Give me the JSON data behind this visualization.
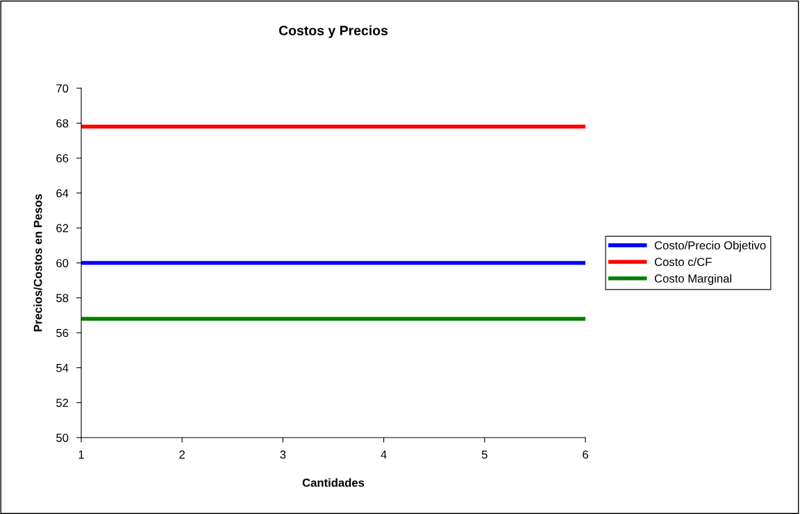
{
  "chart_data": {
    "type": "line",
    "title": "Costos y Precios",
    "xlabel": "Cantidades",
    "ylabel": "Precios/Costos en Pesos",
    "categories": [
      "1",
      "2",
      "3",
      "4",
      "5",
      "6"
    ],
    "series": [
      {
        "name": "Costo/Precio Objetivo",
        "color": "#0000ff",
        "values": [
          60,
          60,
          60,
          60,
          60,
          60
        ]
      },
      {
        "name": "Costo c/CF",
        "color": "#ff0000",
        "values": [
          67.8,
          67.8,
          67.8,
          67.8,
          67.8,
          67.8
        ]
      },
      {
        "name": "Costo Marginal",
        "color": "#008000",
        "values": [
          56.8,
          56.8,
          56.8,
          56.8,
          56.8,
          56.8
        ]
      }
    ],
    "ylim": [
      50,
      70
    ],
    "yticks": [
      50,
      52,
      54,
      56,
      58,
      60,
      62,
      64,
      66,
      68,
      70
    ],
    "grid": false,
    "legend": "right",
    "marker": "none",
    "line_style": "solid"
  }
}
